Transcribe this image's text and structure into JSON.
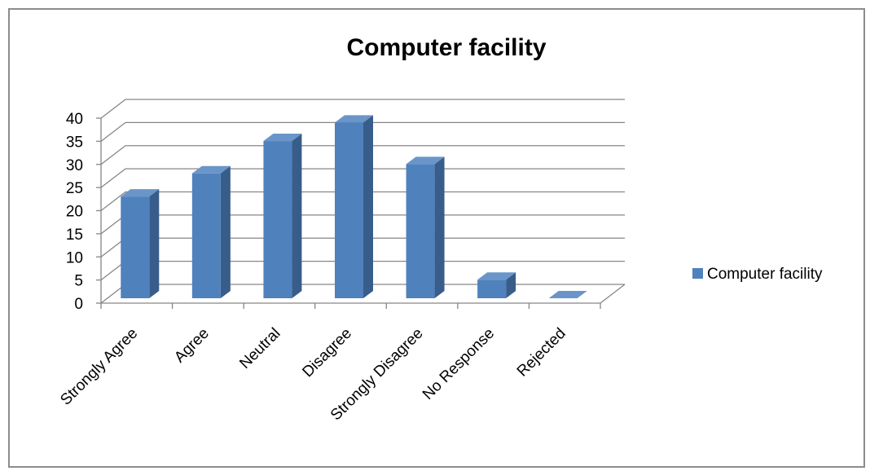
{
  "chart_data": {
    "type": "bar",
    "title": "Computer facility",
    "xlabel": "",
    "ylabel": "",
    "categories": [
      "Strongly Agree",
      "Agree",
      "Neutral",
      "Disagree",
      "Strongly Disagree",
      "No Response",
      "Rejected"
    ],
    "series": [
      {
        "name": "Computer facility",
        "values": [
          22,
          27,
          34,
          38,
          29,
          4,
          0
        ]
      }
    ],
    "ylim": [
      0,
      40
    ],
    "yticks": [
      "0",
      "5",
      "10",
      "15",
      "20",
      "25",
      "30",
      "35",
      "40"
    ],
    "grid": true,
    "legend_position": "right",
    "style": "3d-column",
    "colors": {
      "series": "#4f81bd",
      "side": "#385d8a",
      "top": "#6a95c9",
      "grid": "#868686"
    }
  }
}
